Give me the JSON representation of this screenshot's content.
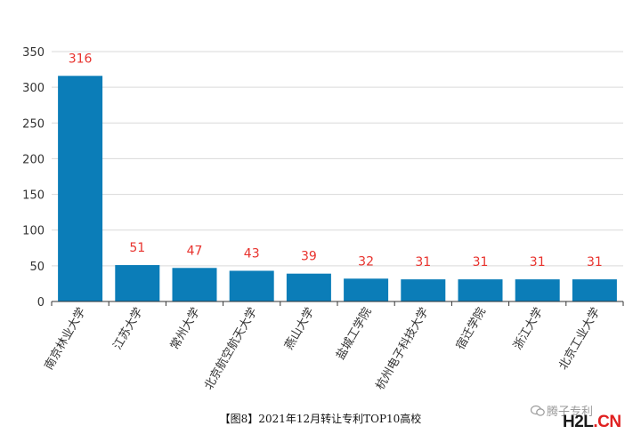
{
  "chart_data": {
    "type": "bar",
    "title": "",
    "xlabel": "",
    "ylabel": "",
    "ylim": [
      0,
      350
    ],
    "yticks": [
      0,
      50,
      100,
      150,
      200,
      250,
      300,
      350
    ],
    "grid": true,
    "categories": [
      "南京林业大学",
      "江苏大学",
      "常州大学",
      "北京航空航天大学",
      "燕山大学",
      "盐城工学院",
      "杭州电子科技大学",
      "宿迁学院",
      "浙江大学",
      "北京工业大学"
    ],
    "values": [
      316,
      51,
      47,
      43,
      39,
      32,
      31,
      31,
      31,
      31
    ],
    "colors": {
      "bar": "#0b7db8",
      "data_label": "#e8322d",
      "grid": "#d9d9d9",
      "axis": "#333333"
    }
  },
  "caption": "【图8】2021年12月转让专利TOP10高校",
  "watermark": {
    "account": "腾子专利",
    "logo_main": "H2L",
    "logo_suffix": ".CN"
  }
}
